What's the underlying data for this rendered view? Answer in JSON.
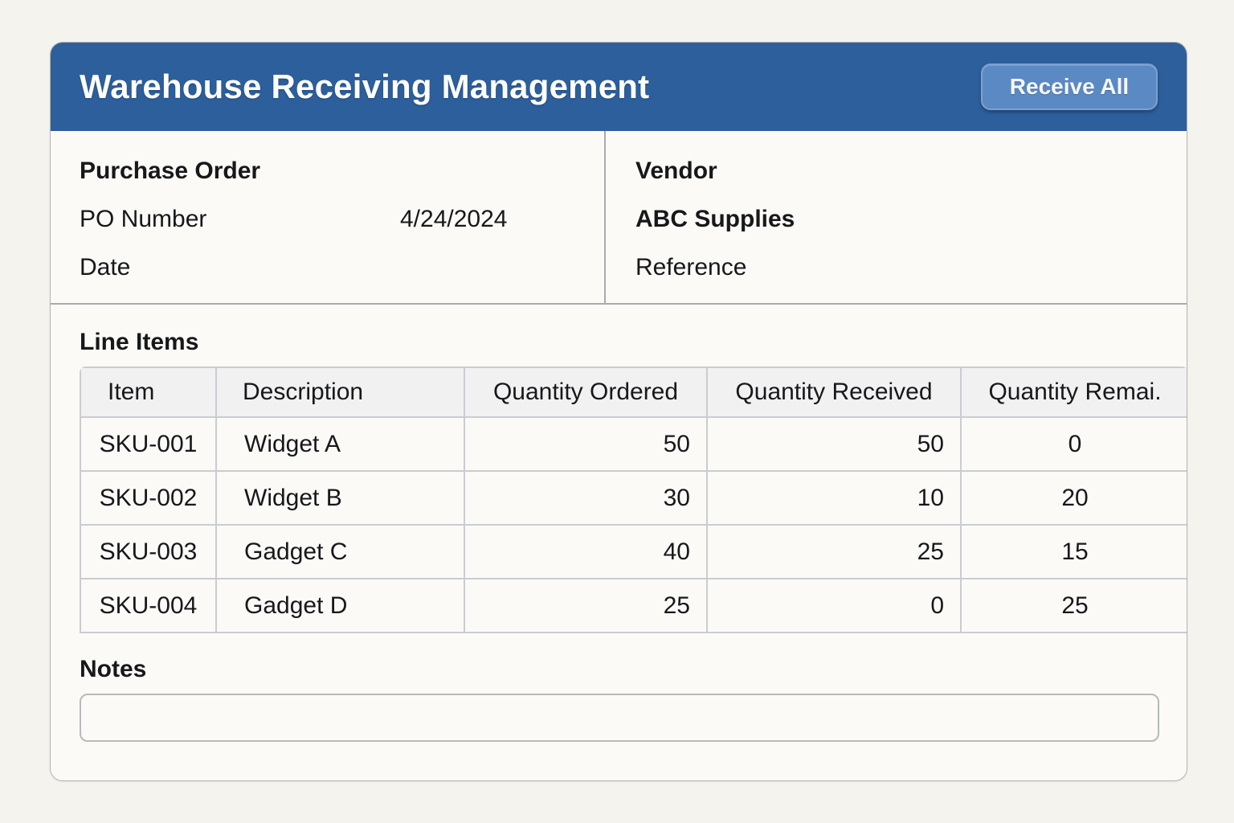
{
  "app": {
    "title": "Warehouse Receiving Management",
    "receive_all_label": "Receive All"
  },
  "purchase_order": {
    "section_title": "Purchase Order",
    "fields": [
      {
        "label": "PO Number",
        "value": "4/24/2024"
      },
      {
        "label": "Date",
        "value": ""
      }
    ]
  },
  "vendor": {
    "section_title": "Vendor",
    "name": "ABC Supplies",
    "reference_label": "Reference"
  },
  "line_items": {
    "section_title": "Line Items",
    "columns": [
      "Item",
      "Description",
      "Quantity Ordered",
      "Quantity Received",
      "Quantity Remai."
    ],
    "rows": [
      {
        "item": "SKU-001",
        "description": "Widget A",
        "ordered": "50",
        "received": "50",
        "remaining": "0"
      },
      {
        "item": "SKU-002",
        "description": "Widget B",
        "ordered": "30",
        "received": "10",
        "remaining": "20"
      },
      {
        "item": "SKU-003",
        "description": "Gadget C",
        "ordered": "40",
        "received": "25",
        "remaining": "15"
      },
      {
        "item": "SKU-004",
        "description": "Gadget D",
        "ordered": "25",
        "received": "0",
        "remaining": "25"
      }
    ]
  },
  "notes": {
    "label": "Notes",
    "value": "",
    "placeholder": ""
  },
  "colors": {
    "page_background": "#f4f3ee",
    "card_background": "#fbfaf6",
    "header_blue": "#2d5f9c",
    "button_blue": "#5b89c4",
    "table_border": "#c9cdd0",
    "table_header_background": "#f1f1f2",
    "divider_gray": "#a9abad",
    "text_dark": "#17181a"
  }
}
